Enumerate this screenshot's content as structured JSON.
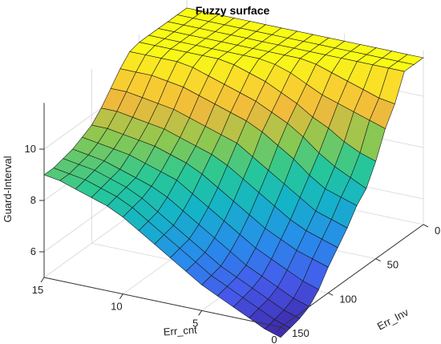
{
  "chart_data": {
    "type": "surface",
    "title": "Fuzzy surface",
    "xlabel": "Err_cnt",
    "ylabel": "Err_Inv",
    "zlabel": "Guard-Interval",
    "x_ticks": [
      0,
      5,
      10,
      15
    ],
    "y_ticks": [
      0,
      50,
      100,
      150
    ],
    "z_ticks": [
      6,
      8,
      10
    ],
    "xlim": [
      0,
      15
    ],
    "ylim": [
      0,
      150
    ],
    "zlim": [
      5,
      11.8
    ],
    "colormap": "parula",
    "grid": true,
    "x": [
      0,
      1,
      2,
      3,
      4,
      5,
      6,
      7,
      8,
      9,
      10,
      11,
      12,
      13,
      14,
      15
    ],
    "y": [
      0,
      10,
      20,
      30,
      40,
      50,
      60,
      70,
      80,
      90,
      100,
      110,
      120,
      130,
      140,
      150
    ],
    "z": [
      [
        11.5,
        11.5,
        11.5,
        10.5,
        9.8,
        8.8,
        8.0,
        7.6,
        7.0,
        6.5,
        6.0,
        5.4,
        5.0,
        4.8,
        4.7,
        4.6
      ],
      [
        11.5,
        11.5,
        11.5,
        10.6,
        10.0,
        9.0,
        8.3,
        7.8,
        7.2,
        6.7,
        6.2,
        5.6,
        5.2,
        5.0,
        4.9,
        4.8
      ],
      [
        11.5,
        11.5,
        11.5,
        10.8,
        10.2,
        9.3,
        8.6,
        8.0,
        7.4,
        6.9,
        6.4,
        5.9,
        5.5,
        5.3,
        5.2,
        5.1
      ],
      [
        11.5,
        11.5,
        11.5,
        11.0,
        10.4,
        9.7,
        9.0,
        8.4,
        7.8,
        7.2,
        6.7,
        6.2,
        5.8,
        5.6,
        5.5,
        5.4
      ],
      [
        11.5,
        11.5,
        11.5,
        11.2,
        10.6,
        10.0,
        9.5,
        8.9,
        8.2,
        7.6,
        7.0,
        6.5,
        6.1,
        5.9,
        5.8,
        5.7
      ],
      [
        11.5,
        11.5,
        11.5,
        11.4,
        10.9,
        10.4,
        9.9,
        9.3,
        8.6,
        8.0,
        7.4,
        6.9,
        6.5,
        6.2,
        6.1,
        6.0
      ],
      [
        11.5,
        11.5,
        11.5,
        11.5,
        11.2,
        10.7,
        10.2,
        9.7,
        9.0,
        8.4,
        7.8,
        7.3,
        6.9,
        6.6,
        6.5,
        6.4
      ],
      [
        11.5,
        11.5,
        11.5,
        11.5,
        11.4,
        11.0,
        10.5,
        10.0,
        9.4,
        8.8,
        8.2,
        7.7,
        7.3,
        7.0,
        6.9,
        6.8
      ],
      [
        11.5,
        11.5,
        11.5,
        11.5,
        11.5,
        11.2,
        10.7,
        10.2,
        9.6,
        9.1,
        8.6,
        8.1,
        7.7,
        7.4,
        7.3,
        7.2
      ],
      [
        11.5,
        11.5,
        11.5,
        11.5,
        11.5,
        11.4,
        10.9,
        10.4,
        9.8,
        9.3,
        8.9,
        8.5,
        8.1,
        7.8,
        7.7,
        7.6
      ],
      [
        11.5,
        11.5,
        11.5,
        11.5,
        11.5,
        11.5,
        11.1,
        10.6,
        10.0,
        9.5,
        9.1,
        8.7,
        8.4,
        8.2,
        8.1,
        8.0
      ],
      [
        11.5,
        11.5,
        11.5,
        11.5,
        11.5,
        11.5,
        11.3,
        10.8,
        10.2,
        9.7,
        9.3,
        8.9,
        8.6,
        8.5,
        8.4,
        8.3
      ],
      [
        11.5,
        11.5,
        11.5,
        11.5,
        11.5,
        11.5,
        11.4,
        10.9,
        10.3,
        9.8,
        9.4,
        9.1,
        8.8,
        8.7,
        8.6,
        8.5
      ],
      [
        11.5,
        11.5,
        11.5,
        11.5,
        11.5,
        11.5,
        11.4,
        11.0,
        10.4,
        9.9,
        9.5,
        9.2,
        9.0,
        8.9,
        8.8,
        8.7
      ],
      [
        11.5,
        11.5,
        11.5,
        11.5,
        11.5,
        11.5,
        11.4,
        11.0,
        10.5,
        10.0,
        9.6,
        9.3,
        9.1,
        9.0,
        8.9,
        8.9
      ],
      [
        11.5,
        11.5,
        11.5,
        11.5,
        11.5,
        11.5,
        11.4,
        11.0,
        10.5,
        10.0,
        9.6,
        9.4,
        9.2,
        9.1,
        9.0,
        9.0
      ]
    ]
  }
}
